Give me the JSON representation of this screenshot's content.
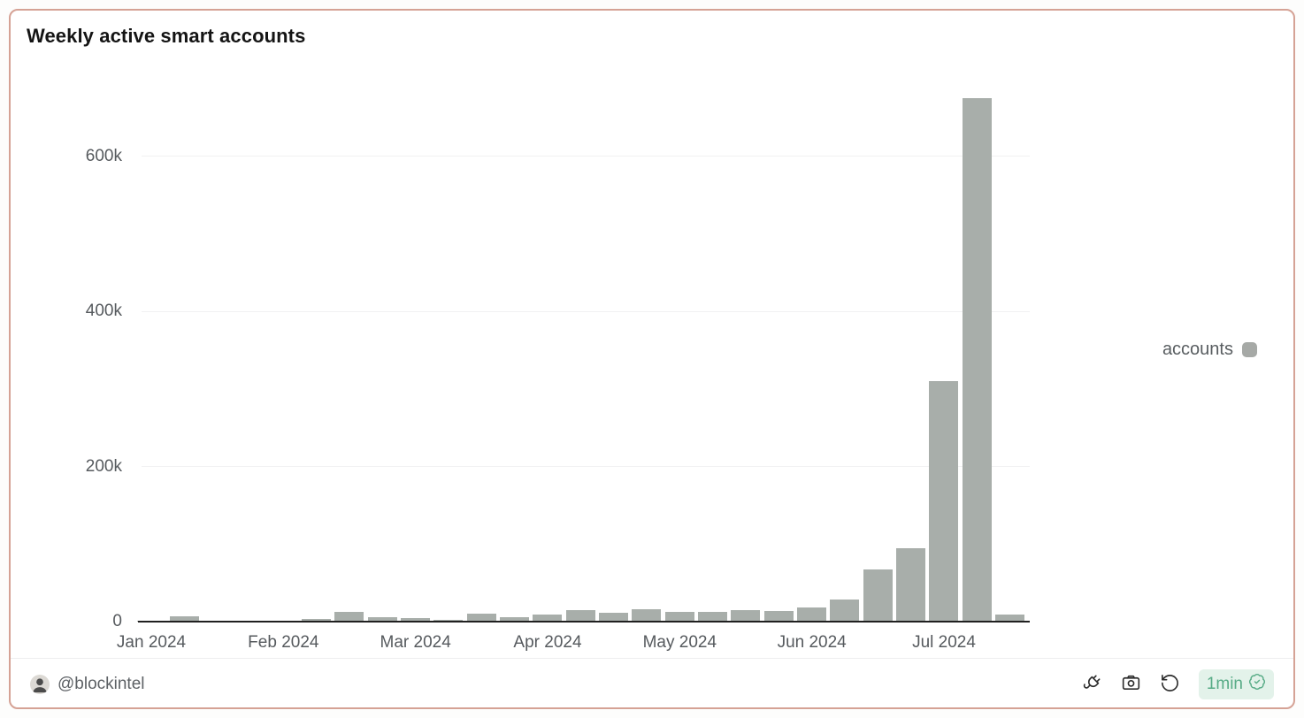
{
  "card": {
    "title": "Weekly active smart accounts",
    "border_color": "#d5a295",
    "background": "#ffffff"
  },
  "legend": {
    "label": "accounts",
    "swatch_color": "#a6a9a6",
    "position": "right"
  },
  "footer": {
    "author_handle": "@blockintel",
    "badge_text": "1min",
    "badge_bg": "#e3f2ea",
    "badge_color": "#57ab86",
    "icons": {
      "avatar": "avatar-photo",
      "fork": "fork-plug-icon",
      "camera": "camera-icon",
      "refresh": "rotate-ccw-icon",
      "verified": "verified-check-icon"
    }
  },
  "chart_data": {
    "type": "bar",
    "title": "Weekly active smart accounts",
    "unit": "accounts",
    "weeks": 27,
    "series": [
      {
        "name": "accounts",
        "values": [
          1000,
          7000,
          1000,
          1000,
          1000,
          3000,
          12000,
          6000,
          4000,
          2000,
          10000,
          6000,
          9000,
          15000,
          11000,
          16000,
          13000,
          12000,
          15000,
          14000,
          18000,
          29000,
          67000,
          95000,
          310000,
          675000,
          9000
        ]
      }
    ],
    "x_tick_labels": [
      "Jan 2024",
      "Feb 2024",
      "Mar 2024",
      "Apr 2024",
      "May 2024",
      "Jun 2024",
      "Jul 2024"
    ],
    "x_tick_positions": [
      0,
      4,
      8,
      12,
      16,
      20,
      24
    ],
    "y_ticks": [
      {
        "value": 0,
        "label": "0"
      },
      {
        "value": 200000,
        "label": "200k"
      },
      {
        "value": 400000,
        "label": "400k"
      },
      {
        "value": 600000,
        "label": "600k"
      }
    ],
    "ylim": [
      0,
      700000
    ],
    "bar_color": "#a8aeaa",
    "grid": true,
    "gridline_color": "#f1f1f2",
    "legend_position": "right"
  }
}
